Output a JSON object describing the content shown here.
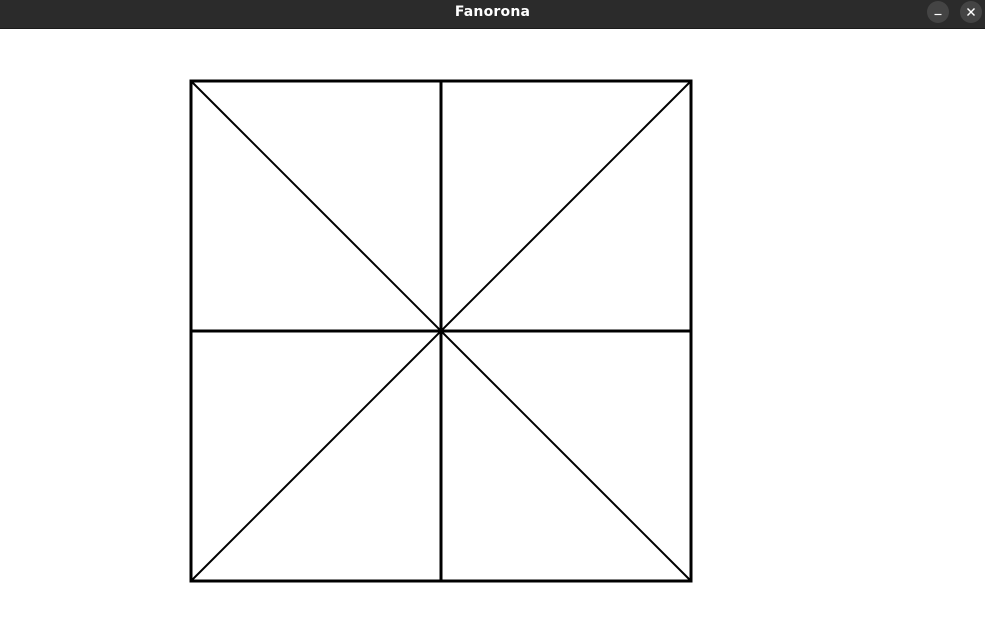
{
  "window": {
    "title": "Fanorona",
    "controls": {
      "minimize_icon": "minimize-icon",
      "close_icon": "close-icon"
    }
  },
  "colors": {
    "titlebar_bg": "#2b2b2b",
    "title_text": "#ffffff",
    "control_bg": "#444444",
    "board_line": "#000000",
    "canvas_bg": "#ffffff"
  },
  "board": {
    "grid_cells": [
      2,
      2
    ],
    "diagonals": true
  }
}
